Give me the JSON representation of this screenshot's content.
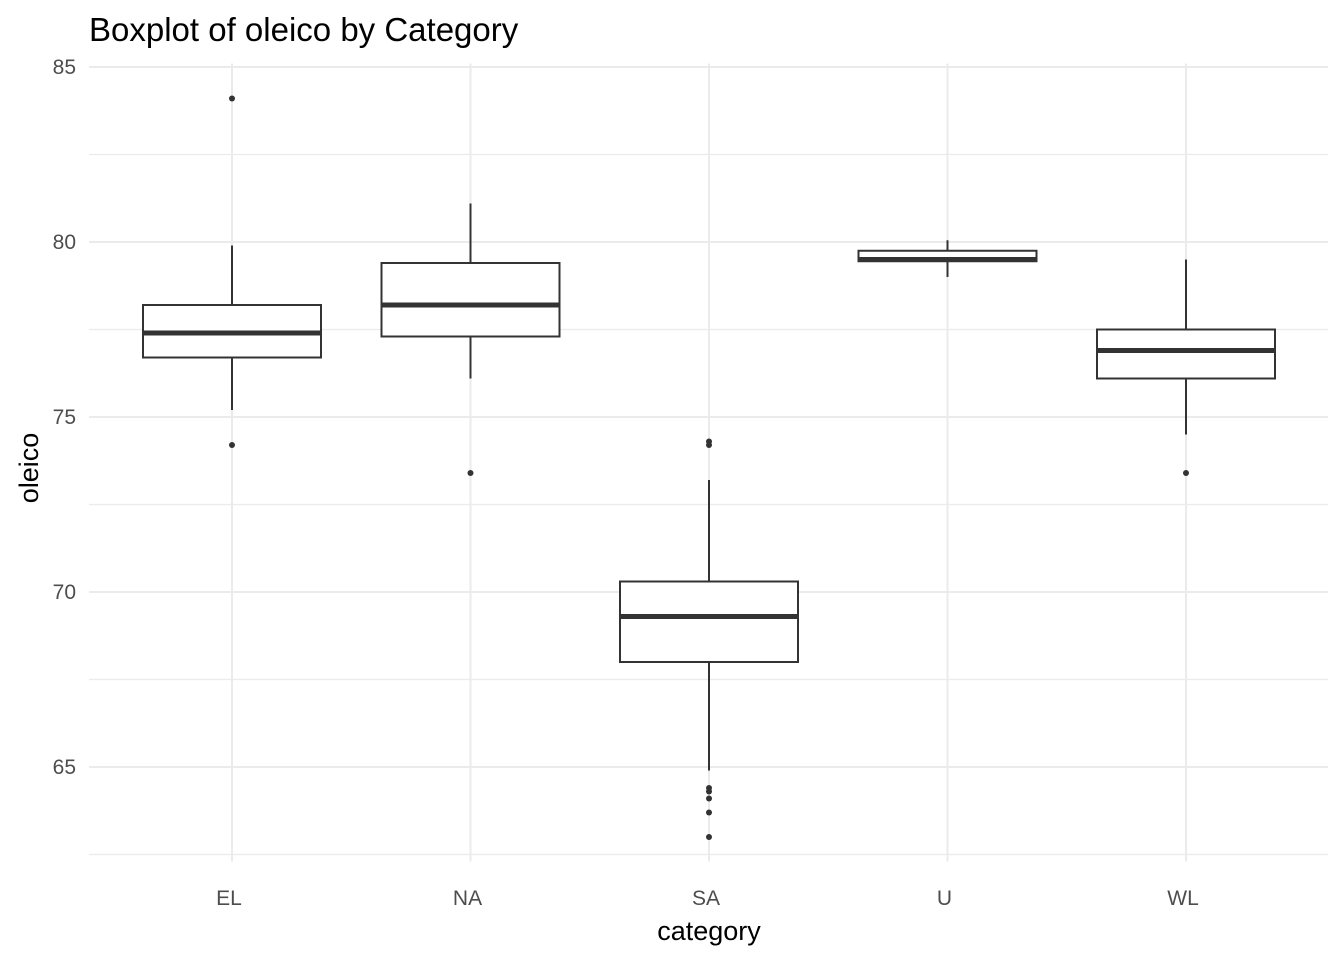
{
  "chart_data": {
    "type": "boxplot",
    "title": "Boxplot of oleico by Category",
    "xlabel": "category",
    "ylabel": "oleico",
    "ylim": [
      62.3,
      85.1
    ],
    "yticks": [
      65,
      70,
      75,
      80,
      85
    ],
    "grid": true,
    "categories": [
      "EL",
      "NA",
      "SA",
      "U",
      "WL"
    ],
    "boxes": [
      {
        "category": "EL",
        "lower_whisker": 75.2,
        "q1": 76.7,
        "median": 77.4,
        "q3": 78.2,
        "upper_whisker": 79.9,
        "outliers": [
          84.1,
          74.2
        ]
      },
      {
        "category": "NA",
        "lower_whisker": 76.1,
        "q1": 77.3,
        "median": 78.2,
        "q3": 79.4,
        "upper_whisker": 81.1,
        "outliers": [
          73.4
        ]
      },
      {
        "category": "SA",
        "lower_whisker": 64.9,
        "q1": 68.0,
        "median": 69.3,
        "q3": 70.3,
        "upper_whisker": 73.2,
        "outliers": [
          74.3,
          74.2,
          64.4,
          64.3,
          64.1,
          63.7,
          63.0
        ]
      },
      {
        "category": "U",
        "lower_whisker": 79.0,
        "q1": 79.45,
        "median": 79.5,
        "q3": 79.75,
        "upper_whisker": 80.05,
        "outliers": []
      },
      {
        "category": "WL",
        "lower_whisker": 74.5,
        "q1": 76.1,
        "median": 76.9,
        "q3": 77.5,
        "upper_whisker": 79.5,
        "outliers": [
          73.4
        ]
      }
    ]
  }
}
